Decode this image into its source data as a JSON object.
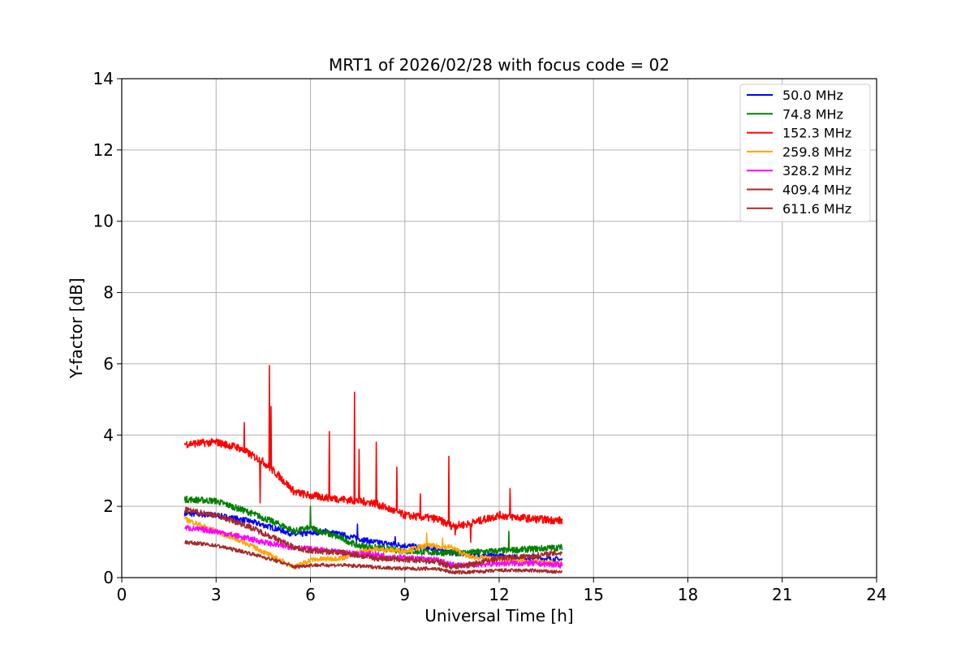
{
  "chart_data": {
    "type": "line",
    "title": "MRT1 of 2026/02/28 with focus code = 02",
    "xlabel": "Universal Time [h]",
    "ylabel": "Y-factor [dB]",
    "xlim": [
      0,
      24
    ],
    "ylim": [
      0,
      14
    ],
    "xticks": [
      0,
      3,
      6,
      9,
      12,
      15,
      18,
      21,
      24
    ],
    "yticks": [
      0,
      2,
      4,
      6,
      8,
      10,
      12,
      14
    ],
    "grid": true,
    "legend_position": "top-right",
    "series": [
      {
        "name": " 50.0 MHz",
        "color": "#0000ff",
        "noise": 0.08,
        "x": [
          2.0,
          3.0,
          4.0,
          5.0,
          5.5,
          6.0,
          6.5,
          7.0,
          7.5,
          8.0,
          9.0,
          10.0,
          10.5,
          11.0,
          12.0,
          13.0,
          14.0
        ],
        "y": [
          1.8,
          1.75,
          1.6,
          1.35,
          1.2,
          1.25,
          1.3,
          1.2,
          1.1,
          1.0,
          0.9,
          0.8,
          0.7,
          0.65,
          0.6,
          0.55,
          0.5
        ],
        "spikes": [
          [
            7.5,
            1.5
          ],
          [
            8.7,
            1.15
          ]
        ]
      },
      {
        "name": " 74.8 MHz",
        "color": "#008000",
        "noise": 0.09,
        "x": [
          2.0,
          3.0,
          4.0,
          5.0,
          5.5,
          6.0,
          7.0,
          7.5,
          8.0,
          9.0,
          10.0,
          11.0,
          12.0,
          13.0,
          14.0
        ],
        "y": [
          2.2,
          2.15,
          1.85,
          1.5,
          1.3,
          1.4,
          1.1,
          0.9,
          0.85,
          0.75,
          0.7,
          0.7,
          0.75,
          0.8,
          0.85
        ],
        "spikes": [
          [
            6.0,
            2.0
          ],
          [
            12.3,
            1.3
          ]
        ]
      },
      {
        "name": " 152.3 MHz",
        "color": "#ff0000",
        "noise": 0.11,
        "x": [
          2.0,
          3.0,
          3.7,
          4.5,
          5.0,
          5.5,
          6.0,
          7.0,
          8.0,
          9.0,
          10.0,
          10.5,
          11.0,
          12.0,
          13.0,
          14.0
        ],
        "y": [
          3.75,
          3.8,
          3.65,
          3.25,
          2.85,
          2.4,
          2.3,
          2.2,
          2.1,
          1.75,
          1.65,
          1.45,
          1.5,
          1.75,
          1.65,
          1.6
        ],
        "spikes": [
          [
            3.9,
            4.35
          ],
          [
            4.4,
            2.1
          ],
          [
            4.7,
            5.95
          ],
          [
            4.75,
            4.8
          ],
          [
            6.6,
            4.1
          ],
          [
            7.4,
            5.2
          ],
          [
            7.55,
            3.6
          ],
          [
            8.1,
            3.8
          ],
          [
            8.75,
            3.1
          ],
          [
            9.5,
            2.35
          ],
          [
            10.4,
            3.4
          ],
          [
            10.6,
            1.2
          ],
          [
            11.1,
            1.0
          ],
          [
            12.35,
            2.5
          ]
        ]
      },
      {
        "name": " 259.8 MHz",
        "color": "#ffa500",
        "noise": 0.07,
        "x": [
          2.0,
          3.0,
          4.0,
          5.0,
          5.5,
          6.0,
          7.0,
          7.5,
          8.0,
          9.0,
          9.7,
          10.5,
          11.0,
          12.0,
          13.0,
          14.0
        ],
        "y": [
          1.65,
          1.3,
          0.95,
          0.5,
          0.3,
          0.5,
          0.55,
          0.7,
          0.8,
          0.75,
          0.9,
          0.85,
          0.6,
          0.5,
          0.45,
          0.4
        ],
        "spikes": [
          [
            9.7,
            1.25
          ],
          [
            10.2,
            1.1
          ]
        ]
      },
      {
        "name": " 328.2 MHz",
        "color": "#ff00ff",
        "noise": 0.08,
        "x": [
          2.0,
          3.0,
          4.0,
          5.0,
          5.5,
          6.0,
          7.0,
          8.0,
          9.0,
          10.0,
          10.5,
          11.0,
          12.0,
          13.0,
          14.0
        ],
        "y": [
          1.4,
          1.3,
          1.1,
          0.9,
          0.85,
          0.8,
          0.7,
          0.65,
          0.55,
          0.5,
          0.35,
          0.35,
          0.4,
          0.4,
          0.35
        ],
        "spikes": []
      },
      {
        "name": " 409.4 MHz",
        "color": "#a52a2a",
        "noise": 0.05,
        "x": [
          2.0,
          3.0,
          4.0,
          5.0,
          5.5,
          6.0,
          7.0,
          8.0,
          9.0,
          10.0,
          10.5,
          11.0,
          12.0,
          13.0,
          14.0
        ],
        "y": [
          1.0,
          0.9,
          0.7,
          0.45,
          0.3,
          0.35,
          0.35,
          0.3,
          0.25,
          0.25,
          0.15,
          0.15,
          0.2,
          0.2,
          0.15
        ],
        "spikes": []
      },
      {
        "name": " 611.6 MHz",
        "color": "#a52a2a",
        "noise": 0.08,
        "x": [
          2.0,
          3.0,
          4.0,
          5.0,
          5.5,
          6.0,
          7.0,
          8.0,
          9.0,
          10.0,
          10.5,
          11.0,
          12.0,
          13.0,
          14.0
        ],
        "y": [
          1.9,
          1.75,
          1.45,
          1.05,
          0.85,
          0.75,
          0.7,
          0.55,
          0.5,
          0.45,
          0.3,
          0.35,
          0.55,
          0.6,
          0.7
        ],
        "spikes": []
      }
    ]
  }
}
